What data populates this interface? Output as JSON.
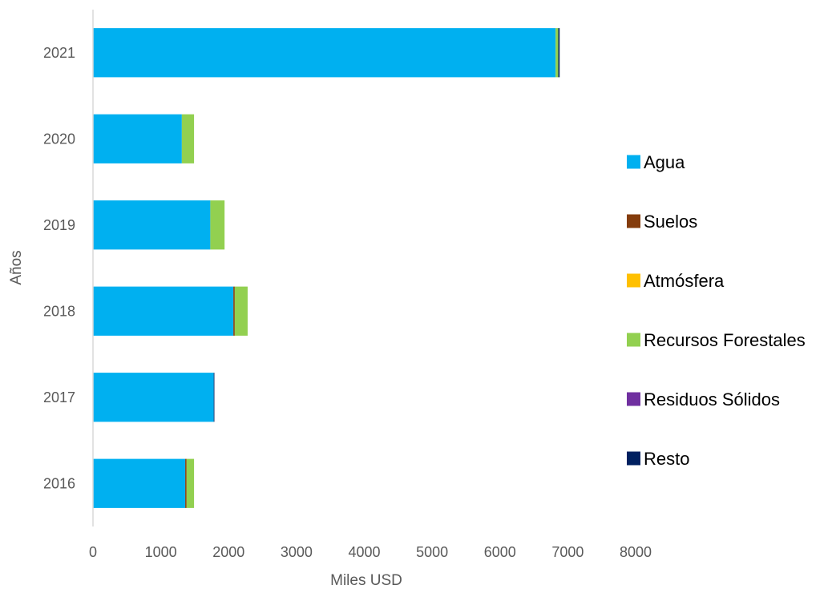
{
  "chart_data": {
    "type": "bar",
    "orientation": "horizontal",
    "stacked": true,
    "categories": [
      "2021",
      "2020",
      "2019",
      "2018",
      "2017",
      "2016"
    ],
    "series": [
      {
        "name": "Agua",
        "color": "#00B0F0",
        "values": [
          6820,
          1310,
          1730,
          2070,
          1780,
          1360
        ]
      },
      {
        "name": "Suelos",
        "color": "#843C0C",
        "values": [
          0,
          0,
          0,
          20,
          0,
          20
        ]
      },
      {
        "name": "Atmósfera",
        "color": "#FFC000",
        "values": [
          0,
          0,
          0,
          0,
          0,
          0
        ]
      },
      {
        "name": "Recursos Forestales",
        "color": "#92D050",
        "values": [
          40,
          180,
          210,
          190,
          0,
          110
        ]
      },
      {
        "name": "Residuos Sólidos",
        "color": "#7030A0",
        "values": [
          0,
          0,
          0,
          0,
          0,
          0
        ]
      },
      {
        "name": "Resto",
        "color": "#002060",
        "values": [
          20,
          0,
          0,
          0,
          10,
          0
        ]
      }
    ],
    "xlabel": "Miles USD",
    "ylabel": "Años",
    "xlim": [
      0,
      8000
    ],
    "xticks": [
      "0",
      "1000",
      "2000",
      "3000",
      "4000",
      "5000",
      "6000",
      "7000",
      "8000"
    ],
    "grid": false,
    "legend": "right"
  }
}
